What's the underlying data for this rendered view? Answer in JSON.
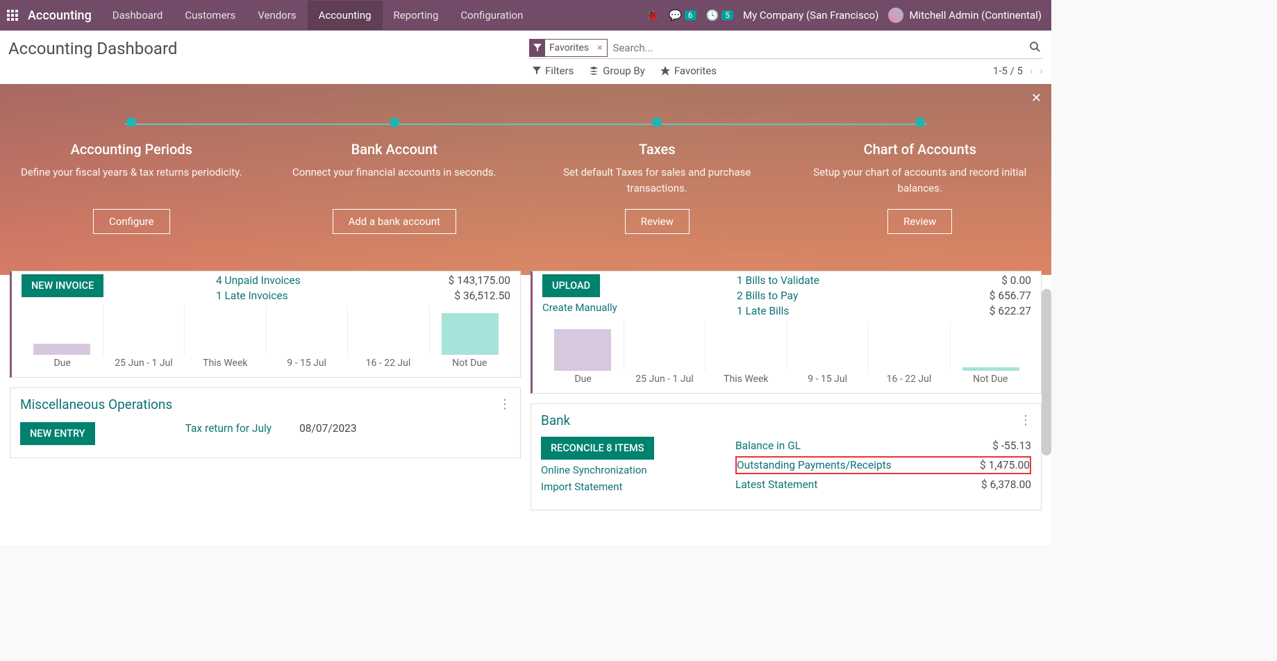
{
  "nav": {
    "brand": "Accounting",
    "items": [
      "Dashboard",
      "Customers",
      "Vendors",
      "Accounting",
      "Reporting",
      "Configuration"
    ],
    "active_index": 3,
    "msg_badge": "6",
    "activity_badge": "5",
    "company": "My Company (San Francisco)",
    "user": "Mitchell Admin (Continental)"
  },
  "page_title": "Accounting Dashboard",
  "search": {
    "chip_label": "Favorites",
    "placeholder": "Search..."
  },
  "toolbar": {
    "filters": "Filters",
    "groupby": "Group By",
    "favorites": "Favorites",
    "pager": "1-5 / 5"
  },
  "banner": {
    "steps": [
      {
        "title": "Accounting Periods",
        "desc": "Define your fiscal years & tax returns periodicity.",
        "btn": "Configure"
      },
      {
        "title": "Bank Account",
        "desc": "Connect your financial accounts in seconds.",
        "btn": "Add a bank account"
      },
      {
        "title": "Taxes",
        "desc": "Set default Taxes for sales and purchase transactions.",
        "btn": "Review"
      },
      {
        "title": "Chart of Accounts",
        "desc": "Setup your chart of accounts and record initial balances.",
        "btn": "Review"
      }
    ]
  },
  "invoice_card": {
    "btn": "NEW INVOICE",
    "rows": [
      {
        "label": "4 Unpaid Invoices",
        "val": "$ 143,175.00"
      },
      {
        "label": "1 Late Invoices",
        "val": "$ 36,512.50"
      }
    ],
    "xlabels": [
      "Due",
      "25 Jun - 1 Jul",
      "This Week",
      "9 - 15 Jul",
      "16 - 22 Jul",
      "Not Due"
    ],
    "bars": [
      12,
      0,
      0,
      0,
      0,
      45
    ],
    "bar_colors": [
      "#d8c8dd",
      "#d8c8dd",
      "#d8c8dd",
      "#d8c8dd",
      "#d8c8dd",
      "#a7e3da"
    ]
  },
  "bills_card": {
    "btn": "UPLOAD",
    "link": "Create Manually",
    "rows": [
      {
        "label": "1 Bills to Validate",
        "val": "$ 0.00"
      },
      {
        "label": "2 Bills to Pay",
        "val": "$ 656.77"
      },
      {
        "label": "1 Late Bills",
        "val": "$ 622.27"
      }
    ],
    "xlabels": [
      "Due",
      "25 Jun - 1 Jul",
      "This Week",
      "9 - 15 Jul",
      "16 - 22 Jul",
      "Not Due"
    ],
    "bars": [
      45,
      0,
      0,
      0,
      0,
      4
    ],
    "bar_colors": [
      "#d8c8dd",
      "#d8c8dd",
      "#d8c8dd",
      "#d8c8dd",
      "#d8c8dd",
      "#a7e3da"
    ]
  },
  "misc_card": {
    "title": "Miscellaneous Operations",
    "btn": "NEW ENTRY",
    "link": "Tax return for July",
    "date": "08/07/2023"
  },
  "bank_card": {
    "title": "Bank",
    "btn": "RECONCILE 8 ITEMS",
    "links": [
      "Online Synchronization",
      "Import Statement"
    ],
    "rows": [
      {
        "label": "Balance in GL",
        "val": "$ -55.13",
        "hl": false
      },
      {
        "label": "Outstanding Payments/Receipts",
        "val": "$ 1,475.00",
        "hl": true
      },
      {
        "label": "Latest Statement",
        "val": "$ 6,378.00",
        "hl": false
      }
    ]
  }
}
